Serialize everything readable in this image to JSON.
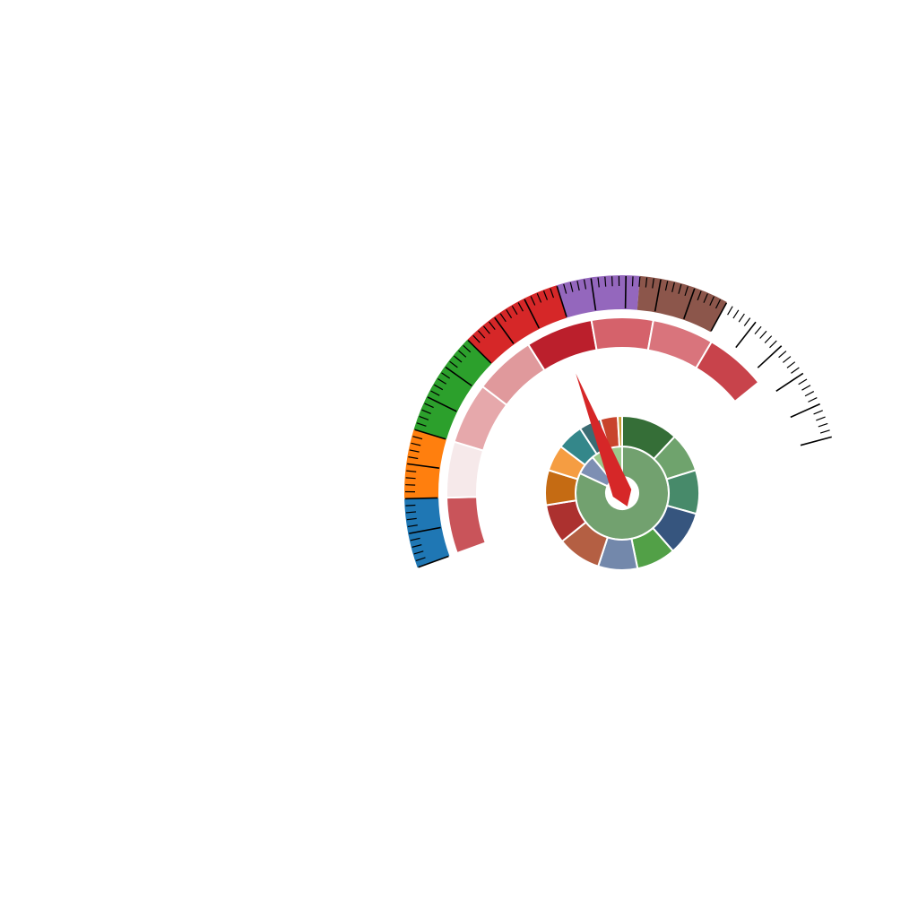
{
  "chart_data": {
    "type": "gauge",
    "title": "",
    "scale": {
      "min": 0,
      "max": 100
    },
    "needle": {
      "value": 48,
      "color": "#d62728"
    },
    "outer_band": {
      "segments": [
        {
          "from": 0,
          "to": 10,
          "color": "#1f77b4"
        },
        {
          "from": 10,
          "to": 20,
          "color": "#ff7f0e"
        },
        {
          "from": 20,
          "to": 35,
          "color": "#2ca02c"
        },
        {
          "from": 35,
          "to": 50,
          "color": "#d62728"
        },
        {
          "from": 50,
          "to": 62,
          "color": "#9467bd"
        },
        {
          "from": 62,
          "to": 75,
          "color": "#8c564b"
        }
      ],
      "ticks": {
        "major_step": 5,
        "minor_step": 1,
        "color": "#000000"
      }
    },
    "inner_band": {
      "segments": [
        {
          "from": 0,
          "to": 10,
          "color": "#c9545a"
        },
        {
          "from": 10,
          "to": 20,
          "color": "#f6e9ea"
        },
        {
          "from": 20,
          "to": 31,
          "color": "#e6a8ab"
        },
        {
          "from": 31,
          "to": 42,
          "color": "#e0999c"
        },
        {
          "from": 42,
          "to": 54,
          "color": "#bb1f2c"
        },
        {
          "from": 54,
          "to": 65,
          "color": "#d5626b"
        },
        {
          "from": 65,
          "to": 76,
          "color": "#d9747c"
        },
        {
          "from": 76,
          "to": 87,
          "color": "#c8434b"
        }
      ]
    },
    "sunburst": {
      "inner_ring": [
        {
          "value": 82,
          "color": "#72a16f"
        },
        {
          "value": 7,
          "color": "#7d8fb3"
        },
        {
          "value": 11,
          "color": "#9cc98c"
        }
      ],
      "outer_ring": [
        {
          "value": 13,
          "color": "#356e37"
        },
        {
          "value": 9,
          "color": "#6fa36d"
        },
        {
          "value": 10,
          "color": "#478a6a"
        },
        {
          "value": 10,
          "color": "#36557e"
        },
        {
          "value": 9,
          "color": "#52a047"
        },
        {
          "value": 9,
          "color": "#7388ab"
        },
        {
          "value": 10,
          "color": "#b45f43"
        },
        {
          "value": 9,
          "color": "#ac312f"
        },
        {
          "value": 8,
          "color": "#c56b13"
        },
        {
          "value": 6,
          "color": "#f59d42"
        },
        {
          "value": 6,
          "color": "#34878a"
        },
        {
          "value": 5,
          "color": "#3b6c73"
        },
        {
          "value": 4,
          "color": "#c8442c"
        },
        {
          "value": 1,
          "color": "#c79a30"
        }
      ]
    }
  }
}
